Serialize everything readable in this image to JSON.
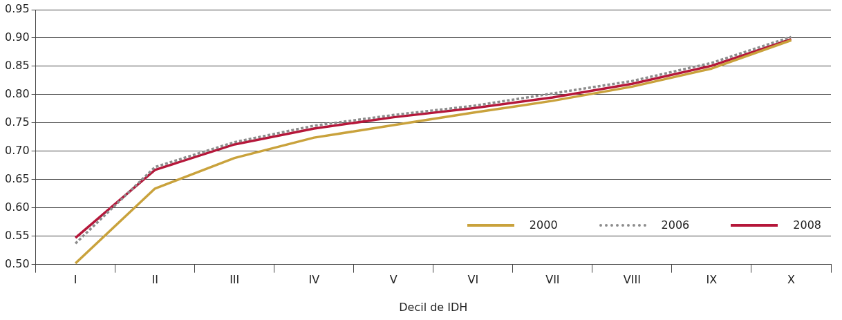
{
  "chart_data": {
    "type": "line",
    "xlabel": "Decil de IDH",
    "categories": [
      "I",
      "II",
      "III",
      "IV",
      "V",
      "VI",
      "VII",
      "VIII",
      "IX",
      "X"
    ],
    "series": [
      {
        "name": "2000",
        "color": "#c9a23c",
        "line_style": "solid",
        "values": [
          0.502,
          0.634,
          0.688,
          0.724,
          0.746,
          0.768,
          0.789,
          0.814,
          0.846,
          0.896
        ]
      },
      {
        "name": "2006",
        "color": "#8c8c8c",
        "line_style": "dotted",
        "values": [
          0.537,
          0.672,
          0.716,
          0.745,
          0.764,
          0.78,
          0.802,
          0.824,
          0.856,
          0.902
        ]
      },
      {
        "name": "2008",
        "color": "#b5173a",
        "line_style": "solid",
        "values": [
          0.547,
          0.667,
          0.712,
          0.74,
          0.76,
          0.776,
          0.795,
          0.819,
          0.851,
          0.898
        ]
      }
    ],
    "ylim": [
      0.5,
      0.95
    ],
    "yticks": [
      {
        "value": 0.5,
        "label": "0.50"
      },
      {
        "value": 0.55,
        "label": "0.55"
      },
      {
        "value": 0.6,
        "label": "0.60"
      },
      {
        "value": 0.65,
        "label": "0.65"
      },
      {
        "value": 0.7,
        "label": "0.70"
      },
      {
        "value": 0.75,
        "label": "0.75"
      },
      {
        "value": 0.8,
        "label": "0.80"
      },
      {
        "value": 0.85,
        "label": "0.85"
      },
      {
        "value": 0.9,
        "label": "0.90"
      },
      {
        "value": 0.95,
        "label": "0.95"
      }
    ],
    "grid": "y",
    "legend": "bottom right",
    "marker": "none"
  }
}
